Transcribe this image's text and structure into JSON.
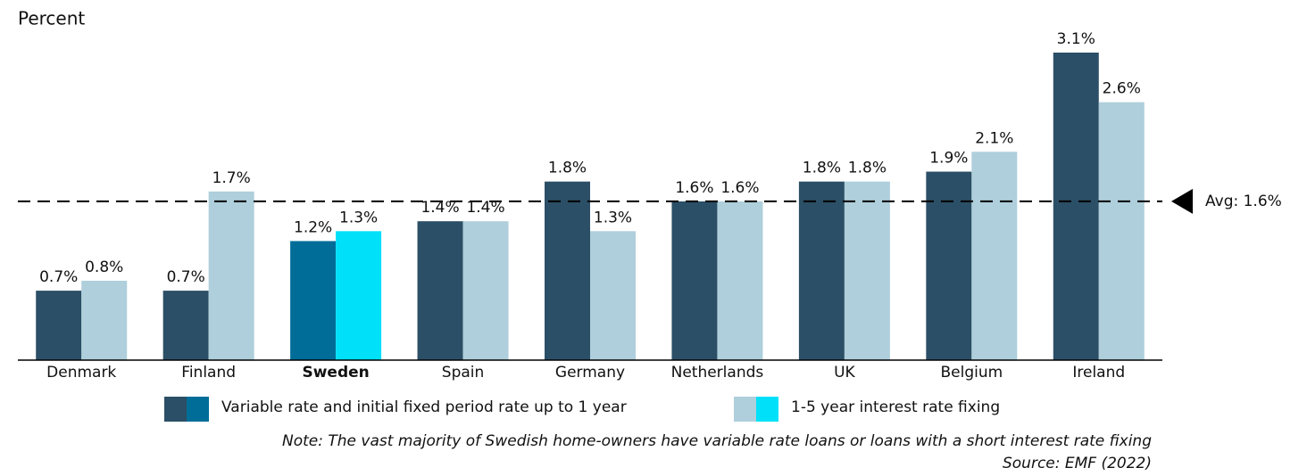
{
  "chart_data": {
    "type": "bar",
    "subtitle": "Percent",
    "categories": [
      "Denmark",
      "Finland",
      "Sweden",
      "Spain",
      "Germany",
      "Netherlands",
      "UK",
      "Belgium",
      "Ireland"
    ],
    "highlight_category": "Sweden",
    "series": [
      {
        "name": "Variable rate and initial fixed period rate up to 1 year",
        "color": "#2b4f66",
        "highlight_color": "#006d99",
        "values": [
          0.7,
          0.7,
          1.2,
          1.4,
          1.8,
          1.6,
          1.8,
          1.9,
          3.1
        ],
        "value_labels": [
          "0.7%",
          "0.7%",
          "1.2%",
          "1.4%",
          "1.8%",
          "1.6%",
          "1.8%",
          "1.9%",
          "3.1%"
        ]
      },
      {
        "name": "1-5 year interest rate fixing",
        "color": "#aecfdb",
        "highlight_color": "#00e1f9",
        "values": [
          0.8,
          1.7,
          1.3,
          1.4,
          1.3,
          1.6,
          1.8,
          2.1,
          2.6
        ],
        "value_labels": [
          "0.8%",
          "1.7%",
          "1.3%",
          "1.4%",
          "1.3%",
          "1.6%",
          "1.8%",
          "2.1%",
          "2.6%"
        ]
      }
    ],
    "average": {
      "value": 1.6,
      "label": "Avg: 1.6%"
    },
    "ylim": [
      0,
      3.1
    ],
    "note": "Note: The vast majority of Swedish home-owners have variable rate loans or loans with a short interest rate fixing",
    "source": "Source: EMF (2022)"
  }
}
